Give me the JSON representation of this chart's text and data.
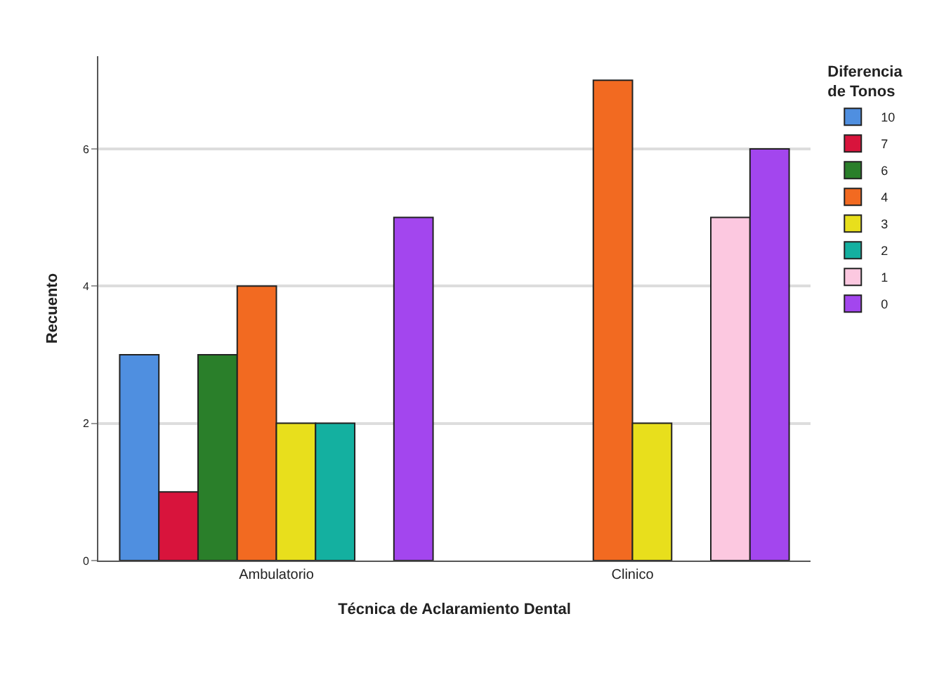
{
  "chart_data": {
    "type": "bar",
    "xlabel": "Técnica de Aclaramiento Dental",
    "ylabel": "Recuento",
    "legend_title": "Diferencia de Tonos",
    "categories": [
      "Ambulatorio",
      "Clinico"
    ],
    "series": [
      {
        "name": "10",
        "color": "#4f8fe0",
        "values": [
          3,
          null
        ]
      },
      {
        "name": "7",
        "color": "#d8143c",
        "values": [
          1,
          null
        ]
      },
      {
        "name": "6",
        "color": "#2a7f2a",
        "values": [
          3,
          null
        ]
      },
      {
        "name": "4",
        "color": "#f26a21",
        "values": [
          4,
          7
        ]
      },
      {
        "name": "3",
        "color": "#e8df1c",
        "values": [
          2,
          2
        ]
      },
      {
        "name": "2",
        "color": "#14b0a0",
        "values": [
          2,
          null
        ]
      },
      {
        "name": "1",
        "color": "#fcc8e0",
        "values": [
          null,
          5
        ]
      },
      {
        "name": "0",
        "color": "#a346ee",
        "values": [
          5,
          6
        ]
      }
    ],
    "ylim": [
      0,
      7.35
    ],
    "yticks": [
      0,
      2,
      4,
      6
    ],
    "grid": "y",
    "legend": "top right"
  }
}
